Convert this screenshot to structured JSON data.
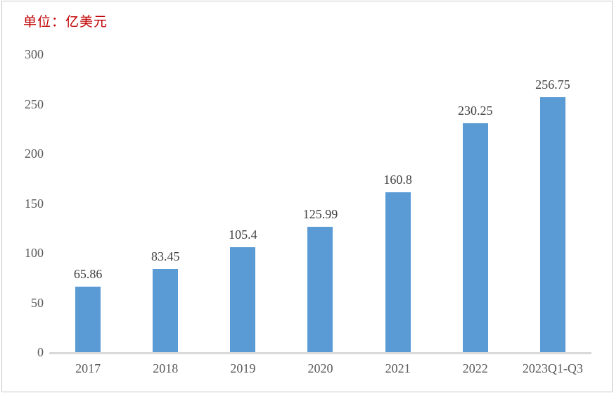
{
  "unit_label": "单位：亿美元",
  "colors": {
    "bar": "#5b9bd5",
    "axis_line": "#d9d9d9",
    "axis_text": "#595959",
    "data_label_text": "#404040",
    "unit_text": "#c00000",
    "frame_border": "#c9c9c9",
    "background": "#ffffff"
  },
  "chart_data": {
    "type": "bar",
    "title": "",
    "subtitle_unit": "单位：亿美元",
    "categories": [
      "2017",
      "2018",
      "2019",
      "2020",
      "2021",
      "2022",
      "2023Q1-Q3"
    ],
    "values": [
      65.86,
      83.45,
      105.4,
      125.99,
      160.8,
      230.25,
      256.75
    ],
    "data_labels": [
      "65.86",
      "83.45",
      "105.4",
      "125.99",
      "160.8",
      "230.25",
      "256.75"
    ],
    "xlabel": "",
    "ylabel": "",
    "ylim": [
      0,
      300
    ],
    "yticks": [
      0,
      50,
      100,
      150,
      200,
      250,
      300
    ],
    "grid": false,
    "legend_position": "none"
  }
}
